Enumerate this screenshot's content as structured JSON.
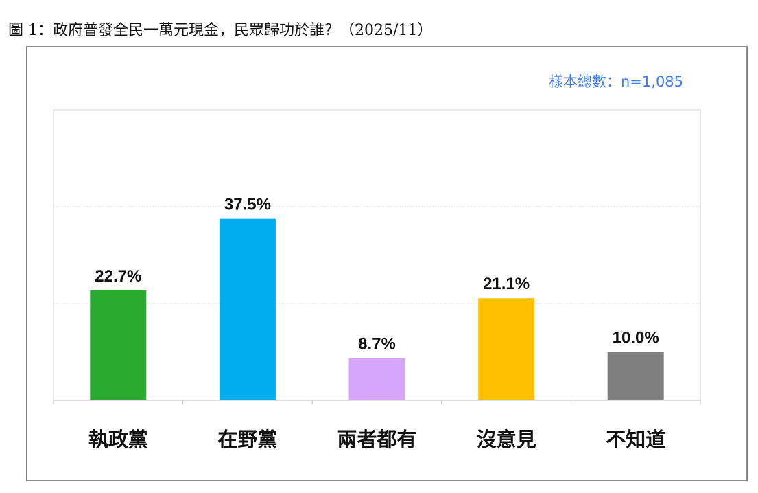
{
  "title": "圖 1：政府普發全民一萬元現金，民眾歸功於誰？（2025/11）",
  "sample_size": "樣本總數：n=1,085",
  "chart_data": {
    "type": "bar",
    "categories": [
      "執政黨",
      "在野黨",
      "兩者都有",
      "沒意見",
      "不知道"
    ],
    "values": [
      22.7,
      37.5,
      8.7,
      21.1,
      10.0
    ],
    "data_labels": [
      "22.7%",
      "37.5%",
      "8.7%",
      "21.1%",
      "10.0%"
    ],
    "colors": [
      "#2aaa2f",
      "#00aeef",
      "#d5a6fb",
      "#ffc000",
      "#7f7f7f"
    ],
    "ylim": [
      0,
      60
    ],
    "gridlines": [
      20,
      40
    ],
    "grid": true,
    "title": "",
    "xlabel": "",
    "ylabel": ""
  }
}
